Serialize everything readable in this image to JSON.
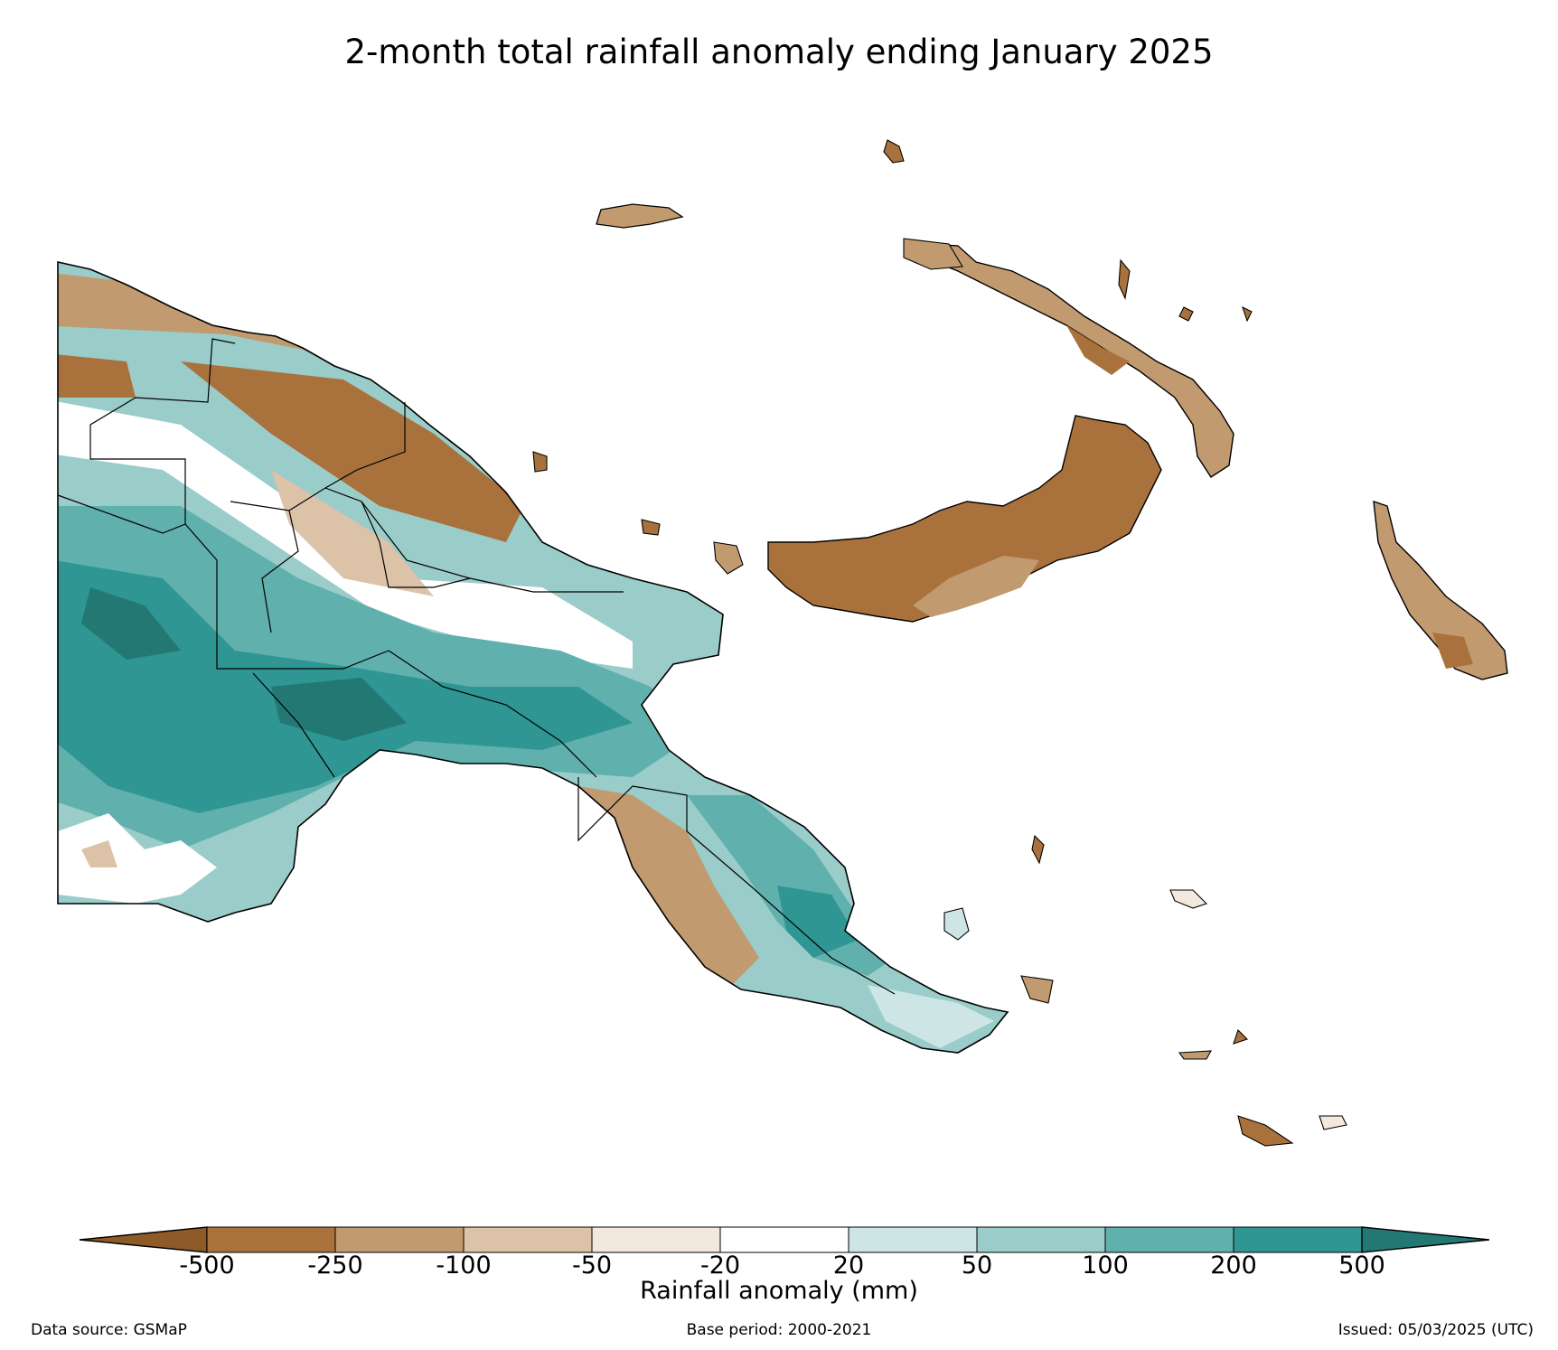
{
  "title": "2-month total rainfall anomaly ending January 2025",
  "legend": {
    "label": "Rainfall anomaly (mm)",
    "ticks": [
      "-500",
      "-250",
      "-100",
      "-50",
      "-20",
      "20",
      "50",
      "100",
      "200",
      "500"
    ],
    "colors": {
      "below_-500": "#8e5a28",
      "-500_-250": "#a9723d",
      "-250_-100": "#c19a6f",
      "-100_-50": "#dcc3a8",
      "-50_-20": "#f2e8de",
      "-20_20": "#ffffff",
      "20_50": "#cde6e5",
      "50_100": "#9accca",
      "100_200": "#60b0ae",
      "200_500": "#2f9693",
      "above_500": "#237874"
    }
  },
  "footer": {
    "source": "Data source: GSMaP",
    "base_period": "Base period: 2000-2021",
    "issued": "Issued: 05/03/2025 (UTC)"
  }
}
